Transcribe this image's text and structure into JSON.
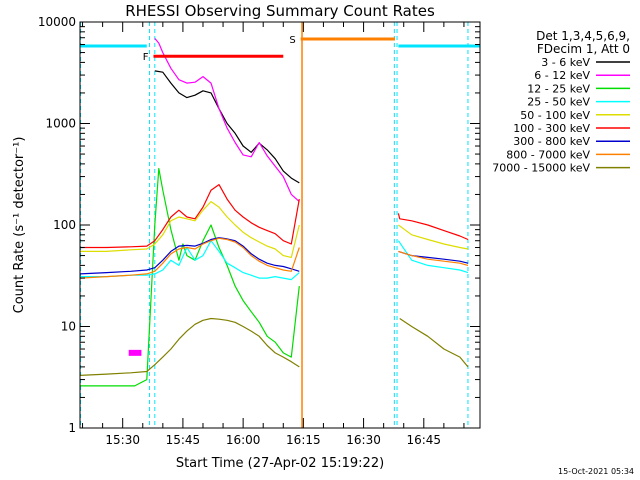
{
  "chart_data": {
    "type": "line",
    "title": "RHESSI Observing Summary Count Rates",
    "xlabel": "Start Time (27-Apr-02 15:19:22)",
    "ylabel": "Count Rate (s⁻¹ detector⁻¹)",
    "yscale": "log",
    "ylim": [
      1,
      10000
    ],
    "xlim": [
      "15:19:22",
      "16:59:00"
    ],
    "y_ticks": [
      "1",
      "10",
      "100",
      "1000",
      "10000"
    ],
    "x_ticks": [
      "15:30",
      "15:45",
      "16:00",
      "16:15",
      "16:30",
      "16:45"
    ],
    "info": [
      "Det 1,3,4,5,6,9,",
      "FDecim 1, Att 0"
    ],
    "timestamp": "15-Oct-2021 05:34",
    "flags": [
      {
        "label": "F",
        "color": "#ff0000",
        "y": 4600,
        "start": "15:37:40",
        "end": "16:10:00"
      },
      {
        "label": "S",
        "color": "#ff8000",
        "y": 6800,
        "start": "16:14:20",
        "end": "16:37:50"
      },
      {
        "label": "",
        "color": "#00e5ff",
        "y": 5800,
        "start": "15:19:22",
        "end": "15:36:00"
      },
      {
        "label": "",
        "color": "#00e5ff",
        "y": 5800,
        "start": "16:38:40",
        "end": "16:59:00"
      }
    ],
    "night_boundaries": [
      "15:19:30",
      "15:36:40",
      "15:38:00",
      "16:37:40",
      "16:38:20",
      "16:56:00"
    ],
    "saa_line": "16:14:40",
    "gap": [
      "16:15:00",
      "16:38:30"
    ],
    "series": [
      {
        "name": "3 - 6 keV",
        "color": "#000000",
        "x": [
          "15:38",
          "15:40",
          "15:42",
          "15:44",
          "15:46",
          "15:48",
          "15:50",
          "15:52",
          "15:54",
          "15:56",
          "15:58",
          "16:00",
          "16:02",
          "16:04",
          "16:06",
          "16:08",
          "16:10",
          "16:12",
          "16:14"
        ],
        "y": [
          3300,
          3200,
          2500,
          2000,
          1800,
          1900,
          2100,
          2000,
          1400,
          1000,
          800,
          600,
          520,
          640,
          550,
          450,
          340,
          290,
          260
        ]
      },
      {
        "name": "6 - 12 keV",
        "color": "#ff00ff",
        "x": [
          "15:38",
          "15:39",
          "15:40",
          "15:42",
          "15:44",
          "15:46",
          "15:48",
          "15:50",
          "15:52",
          "15:54",
          "15:56",
          "15:58",
          "16:00",
          "16:02",
          "16:04",
          "16:06",
          "16:08",
          "16:10",
          "16:12",
          "16:14"
        ],
        "y": [
          6900,
          6200,
          5000,
          3500,
          2700,
          2500,
          2550,
          2900,
          2500,
          1400,
          900,
          650,
          490,
          470,
          650,
          480,
          380,
          300,
          200,
          170
        ],
        "bg": {
          "x": [
            "15:31:30",
            "15:34:40"
          ],
          "y": [
            5.5,
            5.5
          ]
        }
      },
      {
        "name": "12 - 25 keV",
        "color": "#00dd00",
        "x": [
          "15:19:22",
          "15:25",
          "15:30",
          "15:33",
          "15:36",
          "15:38",
          "15:39",
          "15:40",
          "15:42",
          "15:44",
          "15:45",
          "15:46",
          "15:48",
          "15:50",
          "15:52",
          "15:54",
          "15:56",
          "15:58",
          "16:00",
          "16:02",
          "16:04",
          "16:06",
          "16:08",
          "16:10",
          "16:12",
          "16:14"
        ],
        "y": [
          2.6,
          2.6,
          2.6,
          2.6,
          3.0,
          100,
          360,
          220,
          90,
          45,
          65,
          50,
          45,
          70,
          100,
          60,
          40,
          25,
          18,
          14,
          11,
          8,
          7,
          5.5,
          5,
          25
        ]
      },
      {
        "name": "25 - 50 keV",
        "color": "#00ffff",
        "x": [
          "15:19:22",
          "15:26",
          "15:32",
          "15:36",
          "15:38",
          "15:40",
          "15:42",
          "15:44",
          "15:46",
          "15:48",
          "15:50",
          "15:52",
          "15:54",
          "15:56",
          "15:58",
          "16:00",
          "16:02",
          "16:04",
          "16:06",
          "16:08",
          "16:10",
          "16:12",
          "16:14",
          "16:38:40",
          "16:42",
          "16:46",
          "16:50",
          "16:54",
          "16:56"
        ],
        "y": [
          31,
          31,
          32,
          32,
          33,
          36,
          45,
          40,
          60,
          45,
          50,
          70,
          55,
          42,
          38,
          34,
          32,
          30,
          30,
          31,
          30,
          29,
          34,
          70,
          45,
          40,
          38,
          36,
          34
        ]
      },
      {
        "name": "50 - 100 keV",
        "color": "#dddd00",
        "x": [
          "15:19:22",
          "15:26",
          "15:32",
          "15:36",
          "15:38",
          "15:40",
          "15:42",
          "15:44",
          "15:46",
          "15:48",
          "15:50",
          "15:52",
          "15:54",
          "15:56",
          "15:58",
          "16:00",
          "16:02",
          "16:04",
          "16:06",
          "16:08",
          "16:10",
          "16:12",
          "16:14",
          "16:38:40",
          "16:42",
          "16:46",
          "16:50",
          "16:54",
          "16:56"
        ],
        "y": [
          55,
          55,
          57,
          58,
          65,
          80,
          110,
          120,
          115,
          110,
          140,
          170,
          150,
          120,
          100,
          85,
          75,
          68,
          62,
          58,
          50,
          48,
          100,
          100,
          80,
          72,
          65,
          60,
          58
        ]
      },
      {
        "name": "100 - 300 keV",
        "color": "#ff0000",
        "x": [
          "15:19:22",
          "15:26",
          "15:32",
          "15:36",
          "15:38",
          "15:40",
          "15:42",
          "15:44",
          "15:46",
          "15:48",
          "15:50",
          "15:52",
          "15:54",
          "15:56",
          "15:58",
          "16:00",
          "16:02",
          "16:04",
          "16:06",
          "16:08",
          "16:10",
          "16:12",
          "16:14",
          "16:38:40",
          "16:39",
          "16:42",
          "16:46",
          "16:50",
          "16:54",
          "16:56"
        ],
        "y": [
          60,
          60,
          61,
          62,
          70,
          90,
          120,
          140,
          120,
          115,
          150,
          220,
          250,
          180,
          140,
          120,
          105,
          95,
          88,
          82,
          70,
          65,
          180,
          130,
          115,
          110,
          100,
          88,
          78,
          72
        ]
      },
      {
        "name": "300 - 800 keV",
        "color": "#0000cc",
        "x": [
          "15:19:22",
          "15:26",
          "15:32",
          "15:36",
          "15:38",
          "15:40",
          "15:42",
          "15:44",
          "15:46",
          "15:48",
          "15:50",
          "15:52",
          "15:54",
          "15:56",
          "15:58",
          "16:00",
          "16:02",
          "16:04",
          "16:06",
          "16:08",
          "16:10",
          "16:12",
          "16:14",
          "16:38:40",
          "16:42",
          "16:46",
          "16:50",
          "16:54",
          "16:56"
        ],
        "y": [
          33,
          34,
          35,
          36,
          38,
          45,
          55,
          62,
          63,
          62,
          66,
          72,
          75,
          73,
          70,
          62,
          52,
          46,
          42,
          40,
          39,
          37,
          35,
          55,
          50,
          48,
          46,
          44,
          42
        ]
      },
      {
        "name": "800 - 7000 keV",
        "color": "#ff8000",
        "x": [
          "15:19:22",
          "15:26",
          "15:32",
          "15:36",
          "15:38",
          "15:40",
          "15:42",
          "15:44",
          "15:46",
          "15:48",
          "15:50",
          "15:52",
          "15:54",
          "15:56",
          "15:58",
          "16:00",
          "16:02",
          "16:04",
          "16:06",
          "16:08",
          "16:10",
          "16:12",
          "16:14",
          "16:38:40",
          "16:42",
          "16:46",
          "16:50",
          "16:54",
          "16:56"
        ],
        "y": [
          30,
          31,
          32,
          33,
          35,
          42,
          52,
          58,
          60,
          58,
          65,
          70,
          74,
          72,
          68,
          60,
          50,
          44,
          40,
          38,
          36,
          35,
          60,
          55,
          50,
          46,
          44,
          42,
          40
        ]
      },
      {
        "name": "7000 - 15000 keV",
        "color": "#808000",
        "x": [
          "15:19:22",
          "15:26",
          "15:32",
          "15:36",
          "15:38",
          "15:40",
          "15:42",
          "15:44",
          "15:46",
          "15:48",
          "15:50",
          "15:52",
          "15:54",
          "15:56",
          "15:58",
          "16:00",
          "16:02",
          "16:04",
          "16:06",
          "16:08",
          "16:10",
          "16:12",
          "16:14",
          "16:39",
          "16:42",
          "16:46",
          "16:50",
          "16:54",
          "16:56"
        ],
        "y": [
          3.3,
          3.4,
          3.5,
          3.6,
          4.2,
          5.0,
          6.0,
          7.5,
          9.0,
          10.5,
          11.5,
          12.0,
          11.8,
          11.5,
          11.0,
          10.0,
          9.0,
          8.0,
          6.5,
          5.5,
          5.0,
          4.5,
          4.0,
          12,
          10,
          8,
          6,
          5,
          4
        ]
      }
    ]
  }
}
